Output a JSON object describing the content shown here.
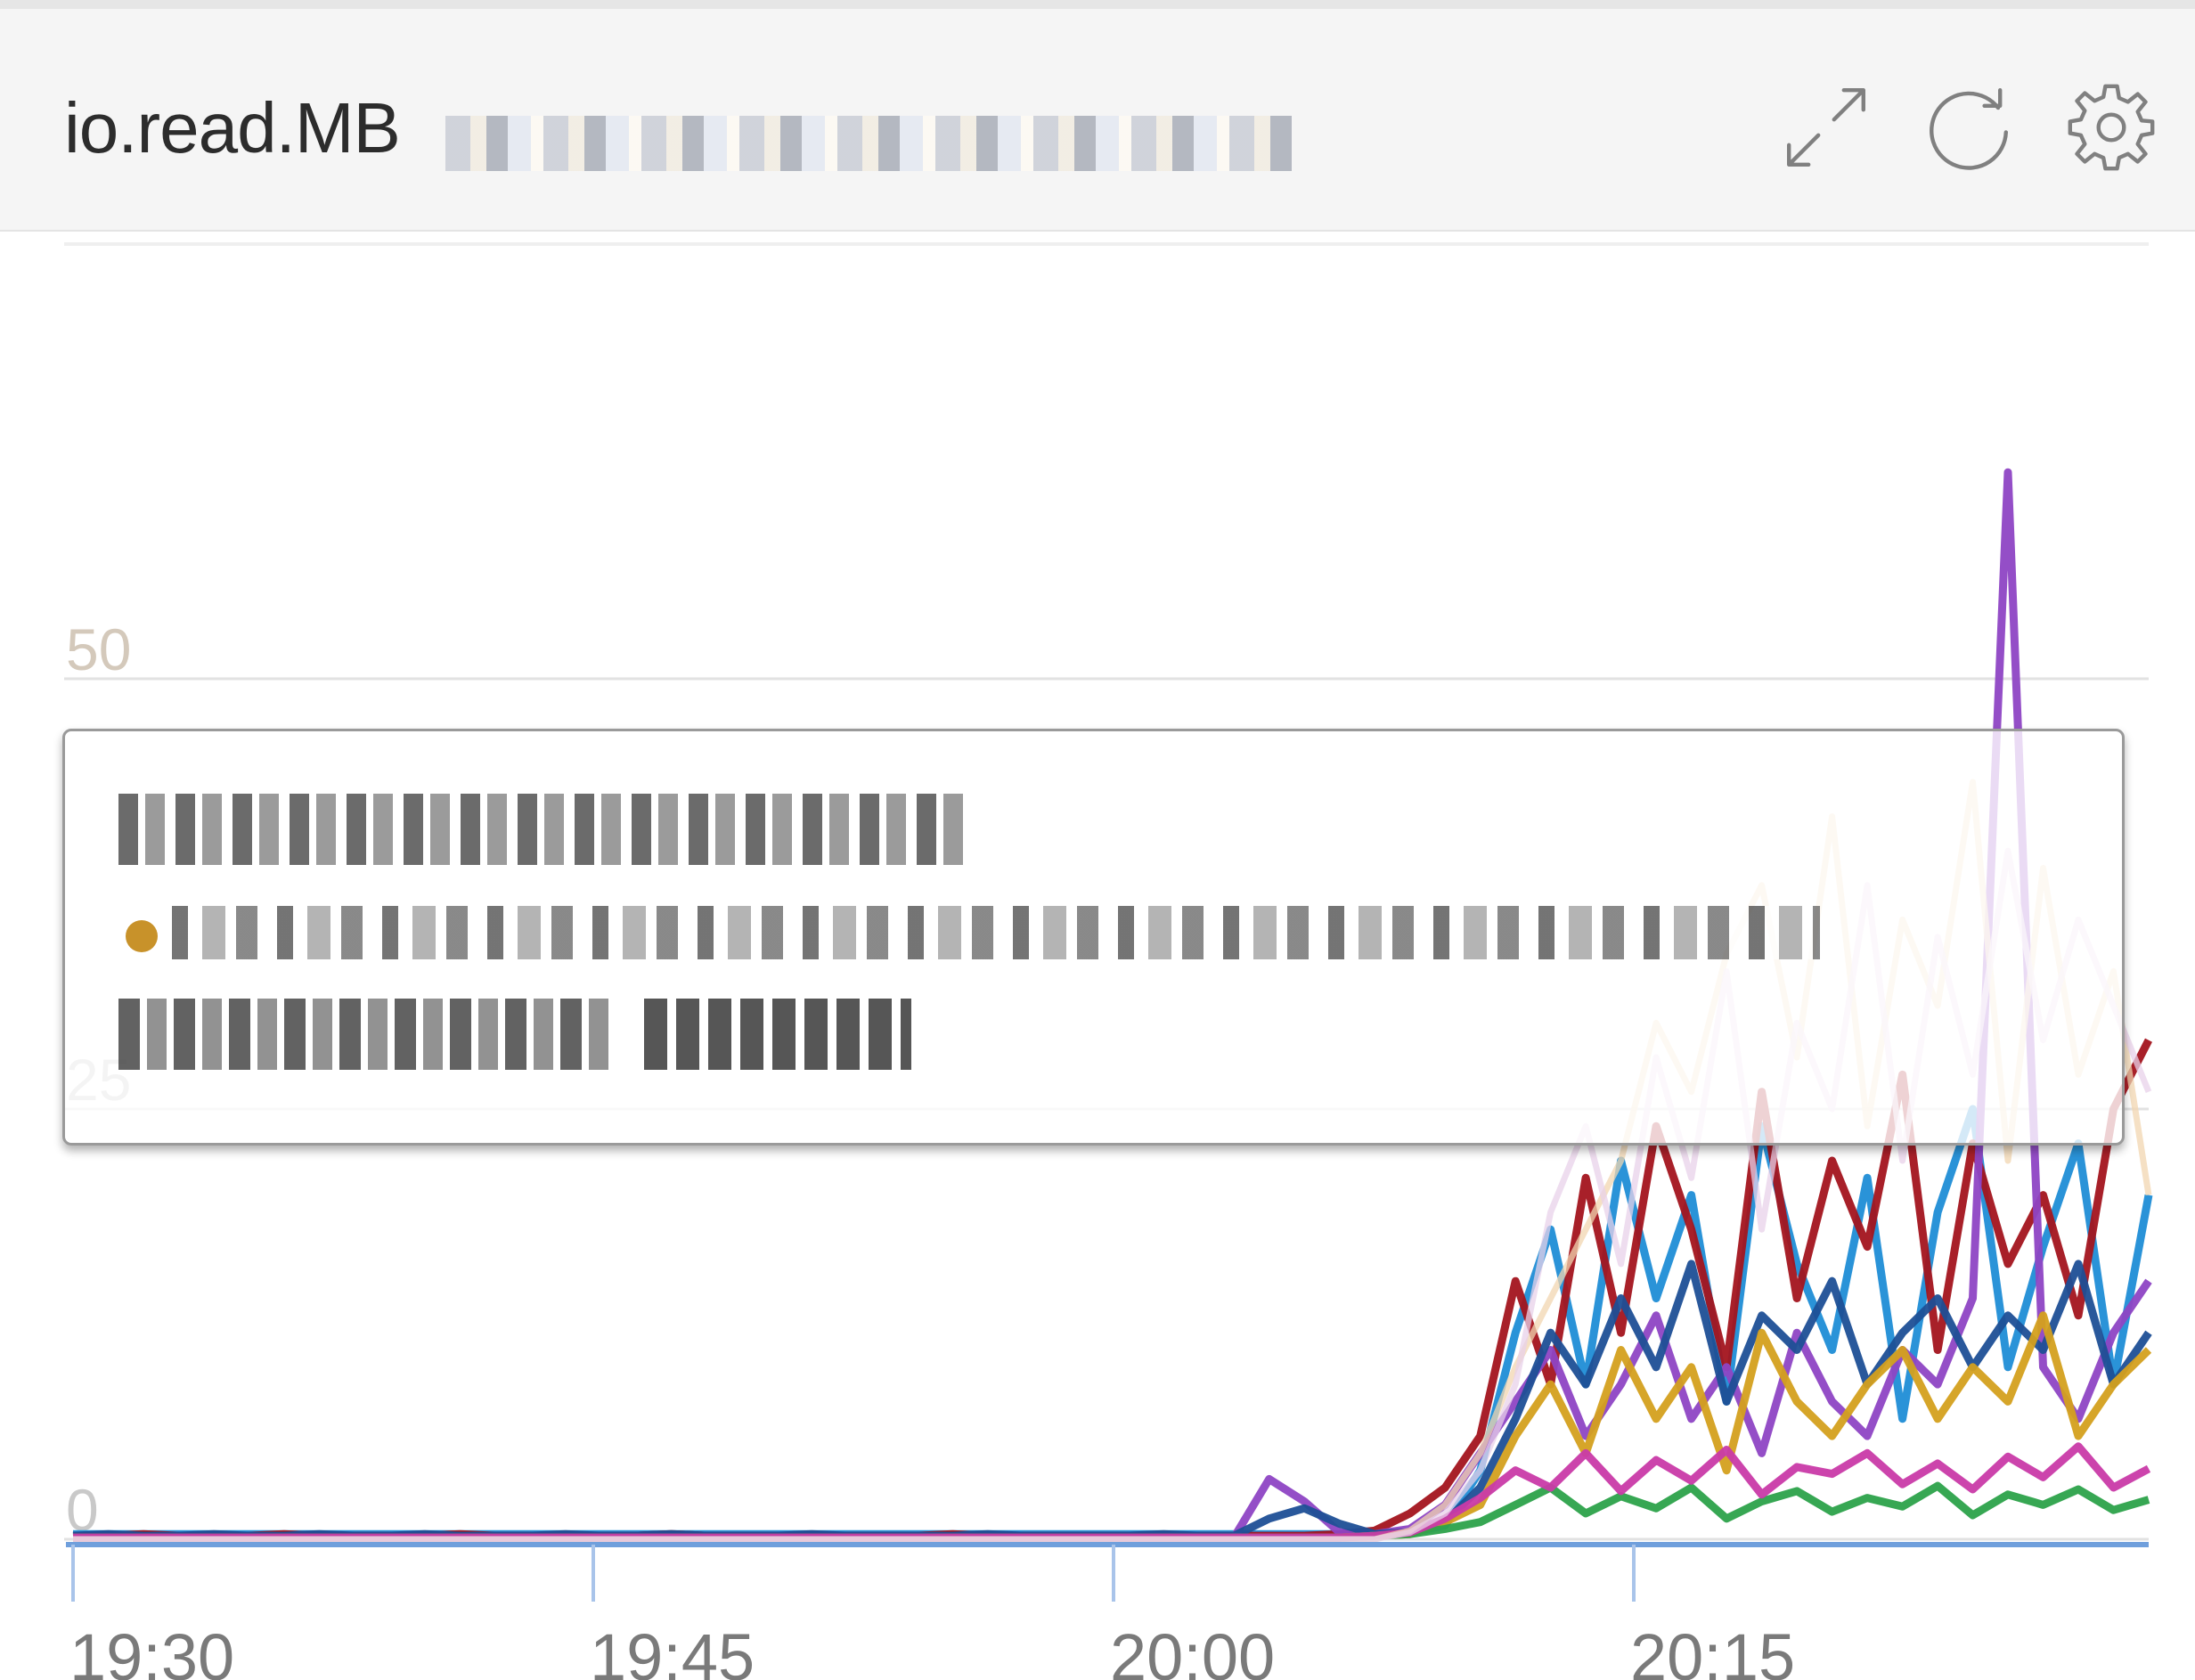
{
  "panel": {
    "title": "io.read.MB",
    "buttons": {
      "expand_icon": "expand-icon",
      "refresh_icon": "refresh-icon",
      "settings_icon": "gear-icon"
    }
  },
  "tooltip": {
    "marker_color": "#c8922a"
  },
  "chart_data": {
    "type": "line",
    "title": "io.read.MB",
    "x_ticks": [
      "19:30",
      "19:45",
      "20:00",
      "20:15"
    ],
    "x_range": [
      "19:30",
      "20:29"
    ],
    "y_ticks": [
      "0",
      "25",
      "50"
    ],
    "ylim": [
      0,
      50
    ],
    "grid": "horizontal",
    "legend": "hidden",
    "note_values": "series names are pixelated in the original; only the visible shape is recorded",
    "series": [
      {
        "color": "#1f8dd6",
        "values": [
          0.3,
          0.3,
          0.3,
          0.3,
          0.3,
          0.3,
          0.3,
          0.3,
          0.3,
          0.3,
          0.3,
          0.3,
          0.3,
          0.3,
          0.3,
          0.3,
          0.3,
          0.3,
          0.3,
          0.3,
          0.3,
          0.3,
          0.3,
          0.3,
          0.3,
          0.3,
          0.3,
          0.3,
          0.3,
          0.3,
          0.3,
          0.3,
          0.3,
          0.3,
          0.3,
          0.3,
          0.3,
          0.3,
          0.4,
          0.8,
          4,
          12,
          18,
          9,
          22,
          14,
          20,
          8,
          24,
          16,
          11,
          21,
          7,
          19,
          25,
          10,
          17,
          23,
          9,
          20
        ]
      },
      {
        "color": "#a3141e",
        "values": [
          0.2,
          0.2,
          0.3,
          0.2,
          0.2,
          0.2,
          0.3,
          0.2,
          0.2,
          0.2,
          0.2,
          0.3,
          0.2,
          0.2,
          0.2,
          0.2,
          0.2,
          0.3,
          0.2,
          0.2,
          0.2,
          0.2,
          0.2,
          0.2,
          0.2,
          0.3,
          0.2,
          0.2,
          0.2,
          0.2,
          0.2,
          0.2,
          0.2,
          0.2,
          0.2,
          0.2,
          0.3,
          0.5,
          1.5,
          3,
          6,
          15,
          9,
          21,
          12,
          24,
          18,
          10,
          26,
          14,
          22,
          17,
          27,
          11,
          23,
          16,
          20,
          13,
          25,
          29
        ]
      },
      {
        "color": "#8e44c4",
        "values": [
          0.1,
          0.1,
          0.1,
          0.1,
          0.1,
          0.1,
          0.1,
          0.1,
          0.1,
          0.1,
          0.1,
          0.1,
          0.1,
          0.1,
          0.1,
          0.1,
          0.1,
          0.1,
          0.1,
          0.1,
          0.1,
          0.1,
          0.1,
          0.1,
          0.1,
          0.1,
          0.1,
          0.1,
          0.1,
          0.1,
          0.1,
          0.1,
          0.1,
          0.1,
          3.5,
          2.2,
          0.4,
          0.3,
          0.6,
          2,
          5,
          8,
          11,
          6,
          9,
          13,
          7,
          10,
          5,
          12,
          8,
          6,
          11,
          9,
          14,
          62,
          10,
          7,
          12,
          15
        ]
      },
      {
        "color": "#1e4f96",
        "values": [
          0.2,
          0.3,
          0.2,
          0.2,
          0.3,
          0.2,
          0.2,
          0.3,
          0.2,
          0.2,
          0.3,
          0.2,
          0.2,
          0.2,
          0.3,
          0.2,
          0.2,
          0.3,
          0.2,
          0.2,
          0.2,
          0.3,
          0.2,
          0.2,
          0.2,
          0.2,
          0.3,
          0.2,
          0.2,
          0.2,
          0.2,
          0.3,
          0.2,
          0.2,
          1.2,
          1.8,
          0.9,
          0.3,
          0.4,
          1,
          3,
          7,
          12,
          9,
          14,
          10,
          16,
          8,
          13,
          11,
          15,
          9,
          12,
          14,
          10,
          13,
          11,
          16,
          9,
          12
        ]
      },
      {
        "color": "#d4a01e",
        "values": [
          0.1,
          0.1,
          0.1,
          0.1,
          0.1,
          0.1,
          0.1,
          0.1,
          0.1,
          0.1,
          0.1,
          0.1,
          0.1,
          0.1,
          0.1,
          0.1,
          0.1,
          0.1,
          0.1,
          0.1,
          0.1,
          0.1,
          0.1,
          0.1,
          0.1,
          0.1,
          0.1,
          0.1,
          0.1,
          0.1,
          0.1,
          0.1,
          0.1,
          0.1,
          0.1,
          0.1,
          0.1,
          0.2,
          0.3,
          1,
          2,
          6,
          9,
          5,
          11,
          7,
          10,
          4,
          12,
          8,
          6,
          9,
          11,
          7,
          10,
          8,
          13,
          6,
          9,
          11
        ]
      },
      {
        "color": "#2ca24a",
        "values": [
          0.1,
          0.1,
          0.1,
          0.1,
          0.1,
          0.1,
          0.1,
          0.1,
          0.1,
          0.1,
          0.1,
          0.1,
          0.1,
          0.1,
          0.1,
          0.1,
          0.1,
          0.1,
          0.1,
          0.1,
          0.1,
          0.1,
          0.1,
          0.1,
          0.1,
          0.1,
          0.1,
          0.1,
          0.1,
          0.1,
          0.1,
          0.1,
          0.1,
          0.1,
          0.1,
          0.1,
          0.1,
          0.2,
          0.3,
          0.6,
          1,
          2,
          3,
          1.5,
          2.5,
          1.8,
          3,
          1.2,
          2.2,
          2.8,
          1.6,
          2.4,
          1.9,
          3.1,
          1.4,
          2.6,
          2,
          2.9,
          1.7,
          2.3
        ]
      },
      {
        "color": "#c93aa8",
        "values": [
          0.1,
          0.1,
          0.1,
          0.1,
          0.1,
          0.1,
          0.1,
          0.1,
          0.1,
          0.1,
          0.1,
          0.1,
          0.1,
          0.1,
          0.1,
          0.1,
          0.1,
          0.1,
          0.1,
          0.1,
          0.1,
          0.1,
          0.1,
          0.1,
          0.1,
          0.1,
          0.1,
          0.1,
          0.1,
          0.1,
          0.1,
          0.1,
          0.1,
          0.1,
          0.1,
          0.1,
          0.1,
          0.2,
          0.4,
          1.2,
          2.4,
          4,
          3,
          5,
          2.8,
          4.6,
          3.4,
          5.2,
          2.6,
          4.2,
          3.8,
          5,
          3.2,
          4.4,
          2.9,
          4.8,
          3.6,
          5.4,
          3,
          4.1
        ]
      },
      {
        "color": "#f2d5b0",
        "values": [
          0,
          0,
          0,
          0,
          0,
          0,
          0,
          0,
          0,
          0,
          0,
          0,
          0,
          0,
          0,
          0,
          0,
          0,
          0,
          0,
          0,
          0,
          0,
          0,
          0,
          0,
          0,
          0,
          0,
          0,
          0,
          0,
          0,
          0,
          0,
          0,
          0,
          0,
          0.5,
          2,
          5,
          10,
          14,
          18,
          22,
          30,
          26,
          34,
          38,
          28,
          42,
          24,
          36,
          31,
          44,
          22,
          39,
          27,
          33,
          20
        ]
      },
      {
        "color": "#e8d2ea",
        "values": [
          0,
          0,
          0,
          0,
          0,
          0,
          0,
          0,
          0,
          0,
          0,
          0,
          0,
          0,
          0,
          0,
          0,
          0,
          0,
          0,
          0,
          0,
          0,
          0,
          0,
          0,
          0,
          0,
          0,
          0,
          0,
          0,
          0,
          0,
          0,
          0,
          0,
          0,
          0.4,
          1.5,
          4,
          9,
          19,
          24,
          16,
          28,
          21,
          33,
          18,
          30,
          25,
          38,
          22,
          35,
          27,
          40,
          29,
          36,
          31,
          26
        ]
      }
    ]
  }
}
